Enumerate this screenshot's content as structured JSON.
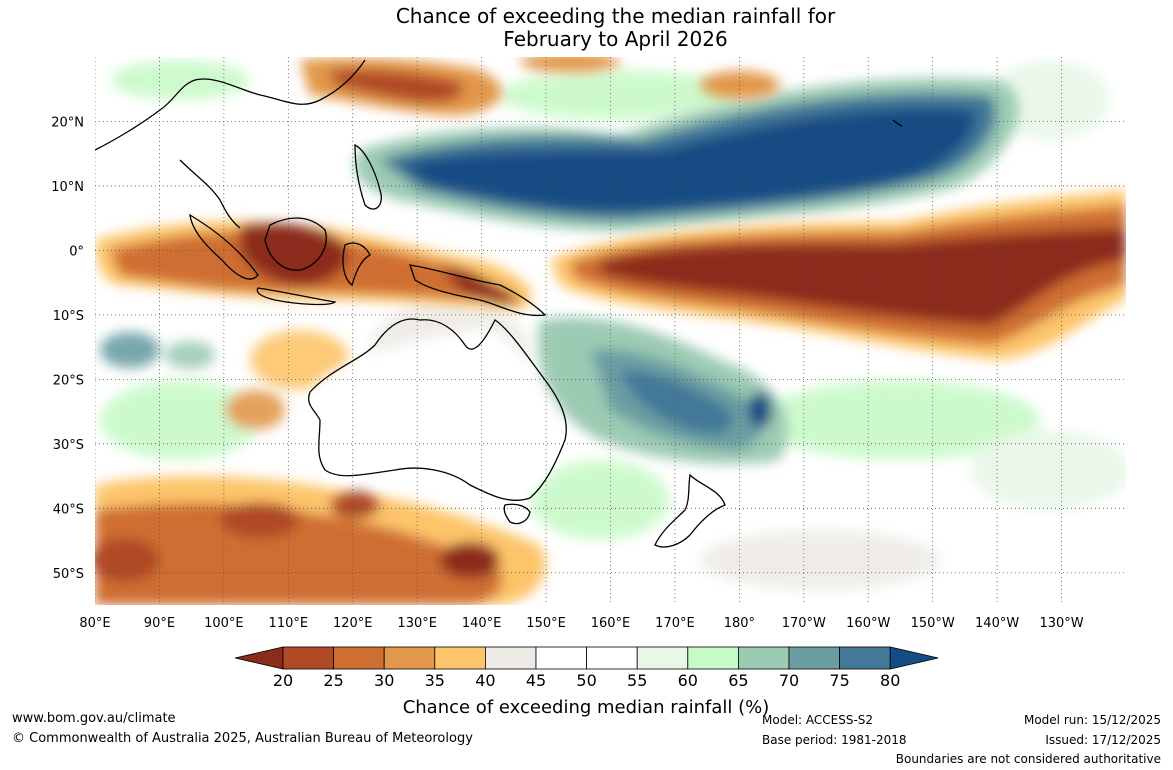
{
  "title": {
    "line1": "Chance of exceeding the median rainfall for",
    "line2": "February to April 2026"
  },
  "map": {
    "lat_labels": [
      "20°N",
      "10°N",
      "0°",
      "10°S",
      "20°S",
      "30°S",
      "40°S",
      "50°S"
    ],
    "lat_values": [
      20,
      10,
      0,
      -10,
      -20,
      -30,
      -40,
      -50
    ],
    "lon_labels": [
      "80°E",
      "90°E",
      "100°E",
      "110°E",
      "120°E",
      "130°E",
      "140°E",
      "150°E",
      "160°E",
      "170°E",
      "180°",
      "170°W",
      "160°W",
      "150°W",
      "140°W",
      "130°W"
    ],
    "lon_values": [
      80,
      90,
      100,
      110,
      120,
      130,
      140,
      150,
      160,
      170,
      180,
      190,
      200,
      210,
      220,
      230
    ],
    "extent": {
      "lon_min": 80,
      "lon_max": 240,
      "lat_min": -55,
      "lat_max": 30
    },
    "regions": [
      {
        "name": "north-pacific-wet-band",
        "category": 80,
        "lon": [
          140,
          216
        ],
        "lat": [
          3,
          24
        ]
      },
      {
        "name": "equatorial-pacific-dry-tongue",
        "category": 20,
        "lon": [
          150,
          240
        ],
        "lat": [
          -16,
          5
        ]
      },
      {
        "name": "maritime-continent-dry",
        "category": 20,
        "lon": [
          105,
          155
        ],
        "lat": [
          -9,
          3
        ]
      },
      {
        "name": "southwest-pacific-wet",
        "category": 75,
        "lon": [
          150,
          195
        ],
        "lat": [
          -37,
          -10
        ]
      },
      {
        "name": "southern-ocean-dry",
        "category": 25,
        "lon": [
          80,
          150
        ],
        "lat": [
          -55,
          -37
        ]
      }
    ]
  },
  "colorbar": {
    "labels": [
      "20",
      "25",
      "30",
      "35",
      "40",
      "45",
      "50",
      "55",
      "60",
      "65",
      "70",
      "75",
      "80"
    ],
    "colors": [
      "#8c2b1b",
      "#b04a26",
      "#cf6e32",
      "#e2974a",
      "#fdc56a",
      "#eeebe6",
      "#ffffff",
      "#ffffff",
      "#e8f7e8",
      "#c8fac8",
      "#9ccbb3",
      "#6b9ea3",
      "#437898",
      "#144c84"
    ],
    "title": "Chance of exceeding median rainfall (%)"
  },
  "footer": {
    "website": "www.bom.gov.au/climate",
    "copyright": "© Commonwealth of Australia 2025, Australian Bureau of Meteorology",
    "model": "Model: ACCESS-S2",
    "base_period": "Base period: 1981-2018",
    "model_run": "Model run: 15/12/2025",
    "issued": "Issued: 17/12/2025",
    "disclaimer": "Boundaries are not considered authoritative"
  }
}
